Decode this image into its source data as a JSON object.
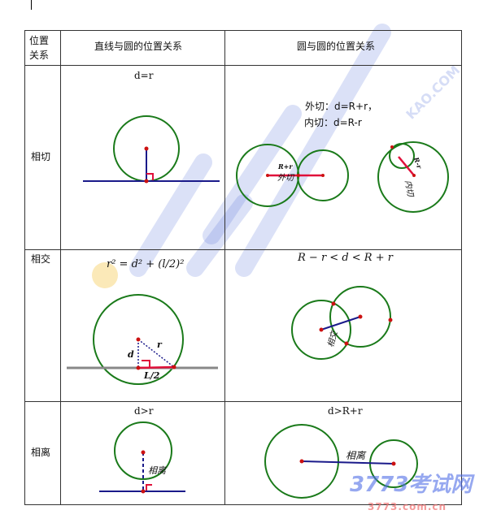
{
  "table": {
    "headers": [
      "位置关系",
      "直线与圆的位置关系",
      "圆与圆的位置关系"
    ],
    "rows": [
      {
        "label": "相切",
        "line_formula": "d=r",
        "circle_formula_outer": "外切：d=R+r，",
        "circle_formula_inner": "内切：d=R-r",
        "diagram_labels": [
          "R+r",
          "外切",
          "R-r",
          "内切"
        ]
      },
      {
        "label": "相交",
        "line_formula": "r² = d² + (l/2)²",
        "circle_formula": "R − r < d < R + r",
        "diagram_labels": [
          "r",
          "d",
          "L/2",
          "相交"
        ]
      },
      {
        "label": "相离",
        "line_formula": "d>r",
        "circle_formula": "d>R+r",
        "diagram_labels": [
          "相离",
          "相离"
        ]
      }
    ]
  },
  "watermarks": {
    "logo": "3773考试网",
    "url": "3773.com.cn",
    "diagonal": "KAO.COM"
  },
  "colors": {
    "circle": "#1a7a1a",
    "segment_red": "#e0103a",
    "segment_blue": "#1a1a8a",
    "point": "#cc1111"
  }
}
